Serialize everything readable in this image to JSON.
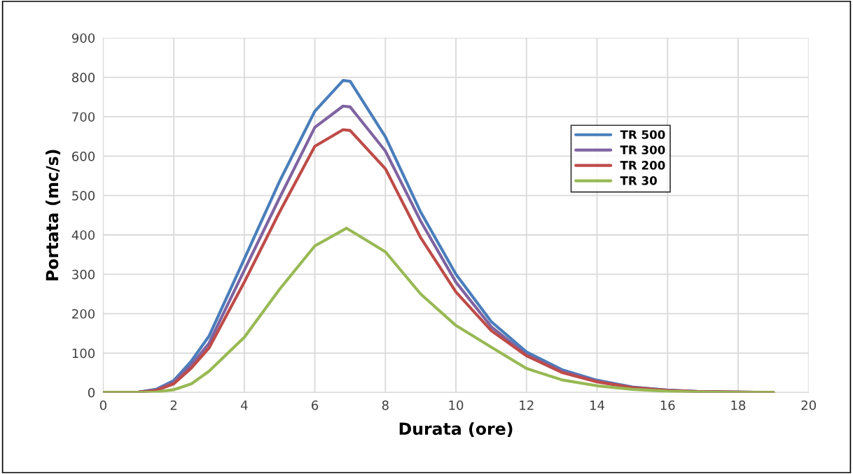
{
  "chart_data": {
    "type": "line",
    "xlabel": "Durata (ore)",
    "ylabel": "Portata (mc/s)",
    "xlim": [
      0,
      20
    ],
    "xticks": [
      0,
      2,
      4,
      6,
      8,
      10,
      12,
      14,
      16,
      18,
      20
    ],
    "ylim": [
      0,
      900
    ],
    "yticks": [
      0,
      100,
      200,
      300,
      400,
      500,
      600,
      700,
      800,
      900
    ],
    "grid": true,
    "legend": "top right",
    "marker": "none",
    "line_style": "solid",
    "series": [
      {
        "name": "TR 500",
        "color": "#4a7ebb",
        "x": [
          0,
          1,
          1.5,
          2,
          2.5,
          3,
          4,
          5,
          6,
          6.8,
          7,
          8,
          9,
          10,
          11,
          12,
          13,
          14,
          15,
          16,
          17,
          18,
          19
        ],
        "values": [
          0,
          1,
          8,
          30,
          80,
          143,
          339,
          536,
          714,
          792,
          790,
          649,
          458,
          300,
          180,
          103,
          58,
          31,
          14,
          6,
          2,
          1,
          0
        ]
      },
      {
        "name": "TR 300",
        "color": "#7f63a1",
        "x": [
          0,
          1,
          1.5,
          2,
          2.5,
          3,
          4,
          5,
          6,
          6.8,
          7,
          8,
          9,
          10,
          11,
          12,
          13,
          14,
          15,
          16,
          17,
          18,
          19
        ],
        "values": [
          0,
          1,
          6,
          26,
          70,
          125,
          310,
          494,
          673,
          727,
          725,
          613,
          435,
          280,
          167,
          96,
          54,
          29,
          13,
          6,
          2,
          1,
          0
        ]
      },
      {
        "name": "TR 200",
        "color": "#be4b48",
        "x": [
          0,
          1,
          1.5,
          2,
          2.5,
          3,
          4,
          5,
          6,
          6.8,
          7,
          8,
          9,
          10,
          11,
          12,
          13,
          14,
          15,
          16,
          17,
          18,
          19
        ],
        "values": [
          0,
          1,
          5,
          22,
          62,
          113,
          280,
          458,
          625,
          667,
          665,
          568,
          393,
          255,
          157,
          93,
          51,
          27,
          12,
          5,
          2,
          1,
          0
        ]
      },
      {
        "name": "TR 30",
        "color": "#98b954",
        "x": [
          0,
          1,
          1.5,
          2,
          2.5,
          3,
          4,
          5,
          6,
          6.9,
          8,
          9,
          10,
          11,
          12,
          13,
          14,
          15,
          16,
          17,
          18,
          19
        ],
        "values": [
          0,
          0,
          1,
          7,
          22,
          54,
          140,
          262,
          372,
          417,
          357,
          250,
          170,
          115,
          61,
          32,
          17,
          8,
          3,
          1,
          0,
          0
        ]
      }
    ]
  }
}
